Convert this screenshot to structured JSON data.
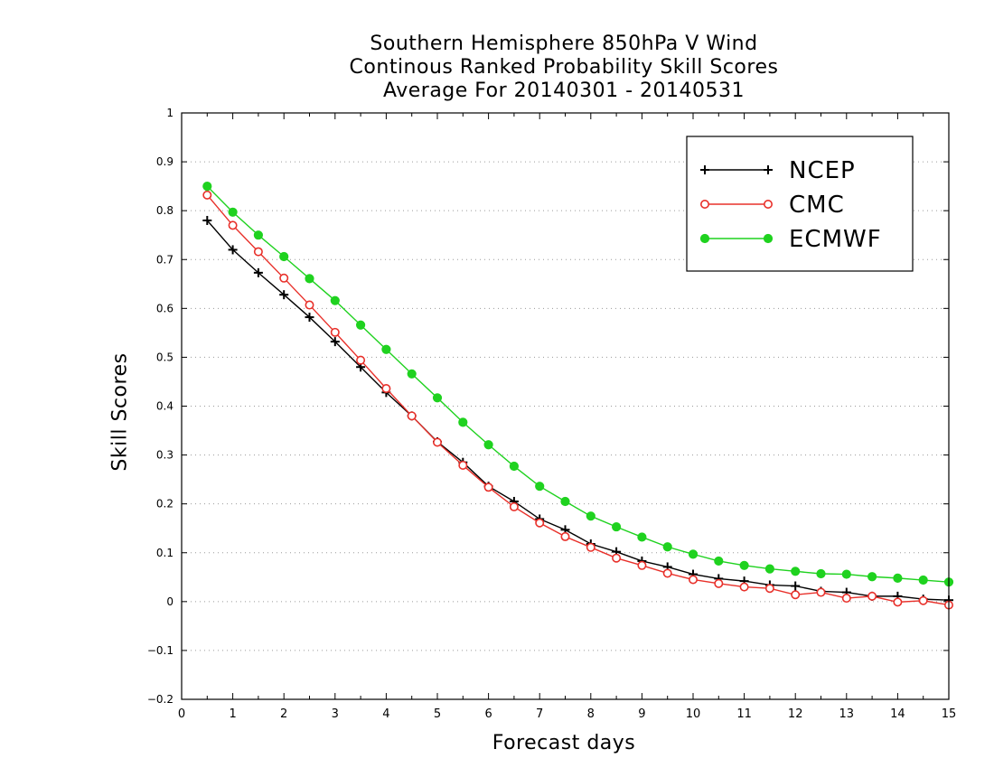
{
  "chart_data": {
    "type": "line",
    "title": [
      "Southern Hemisphere 850hPa V Wind",
      "Continous Ranked Probability Skill Scores",
      "Average For 20140301 - 20140531"
    ],
    "xlabel": "Forecast days",
    "ylabel": "Skill Scores",
    "xlim": [
      0,
      15
    ],
    "ylim": [
      -0.2,
      1
    ],
    "xticks": [
      "0",
      "1",
      "2",
      "3",
      "4",
      "5",
      "6",
      "7",
      "8",
      "9",
      "10",
      "11",
      "12",
      "13",
      "14",
      "15"
    ],
    "yticks": [
      "−0.2",
      "−0.1",
      "0",
      "0.1",
      "0.2",
      "0.3",
      "0.4",
      "0.5",
      "0.6",
      "0.7",
      "0.8",
      "0.9",
      "1"
    ],
    "grid": "horizontal dotted",
    "legend_position": "top-right",
    "x": [
      0.5,
      1,
      1.5,
      2,
      2.5,
      3,
      3.5,
      4,
      4.5,
      5,
      5.5,
      6,
      6.5,
      7,
      7.5,
      8,
      8.5,
      9,
      9.5,
      10,
      10.5,
      11,
      11.5,
      12,
      12.5,
      13,
      13.5,
      14,
      14.5,
      15
    ],
    "series": [
      {
        "name": "NCEP",
        "color": "#000000",
        "marker": "plus",
        "values": [
          0.78,
          0.72,
          0.673,
          0.628,
          0.582,
          0.532,
          0.48,
          0.428,
          0.38,
          0.327,
          0.285,
          0.236,
          0.205,
          0.169,
          0.147,
          0.118,
          0.102,
          0.083,
          0.071,
          0.056,
          0.047,
          0.042,
          0.034,
          0.032,
          0.021,
          0.019,
          0.011,
          0.011,
          0.005,
          0.003
        ]
      },
      {
        "name": "CMC",
        "color": "#e8302a",
        "marker": "open-circle",
        "values": [
          0.832,
          0.77,
          0.716,
          0.662,
          0.607,
          0.551,
          0.494,
          0.436,
          0.38,
          0.326,
          0.279,
          0.234,
          0.194,
          0.161,
          0.133,
          0.111,
          0.089,
          0.074,
          0.058,
          0.045,
          0.037,
          0.03,
          0.027,
          0.014,
          0.019,
          0.007,
          0.011,
          -0.001,
          0.002,
          -0.007
        ]
      },
      {
        "name": "ECMWF",
        "color": "#1fd21f",
        "marker": "filled-circle",
        "values": [
          0.85,
          0.797,
          0.75,
          0.706,
          0.661,
          0.616,
          0.566,
          0.516,
          0.466,
          0.417,
          0.367,
          0.321,
          0.277,
          0.236,
          0.205,
          0.175,
          0.153,
          0.132,
          0.112,
          0.097,
          0.083,
          0.074,
          0.067,
          0.062,
          0.057,
          0.056,
          0.051,
          0.048,
          0.044,
          0.04
        ]
      }
    ]
  }
}
